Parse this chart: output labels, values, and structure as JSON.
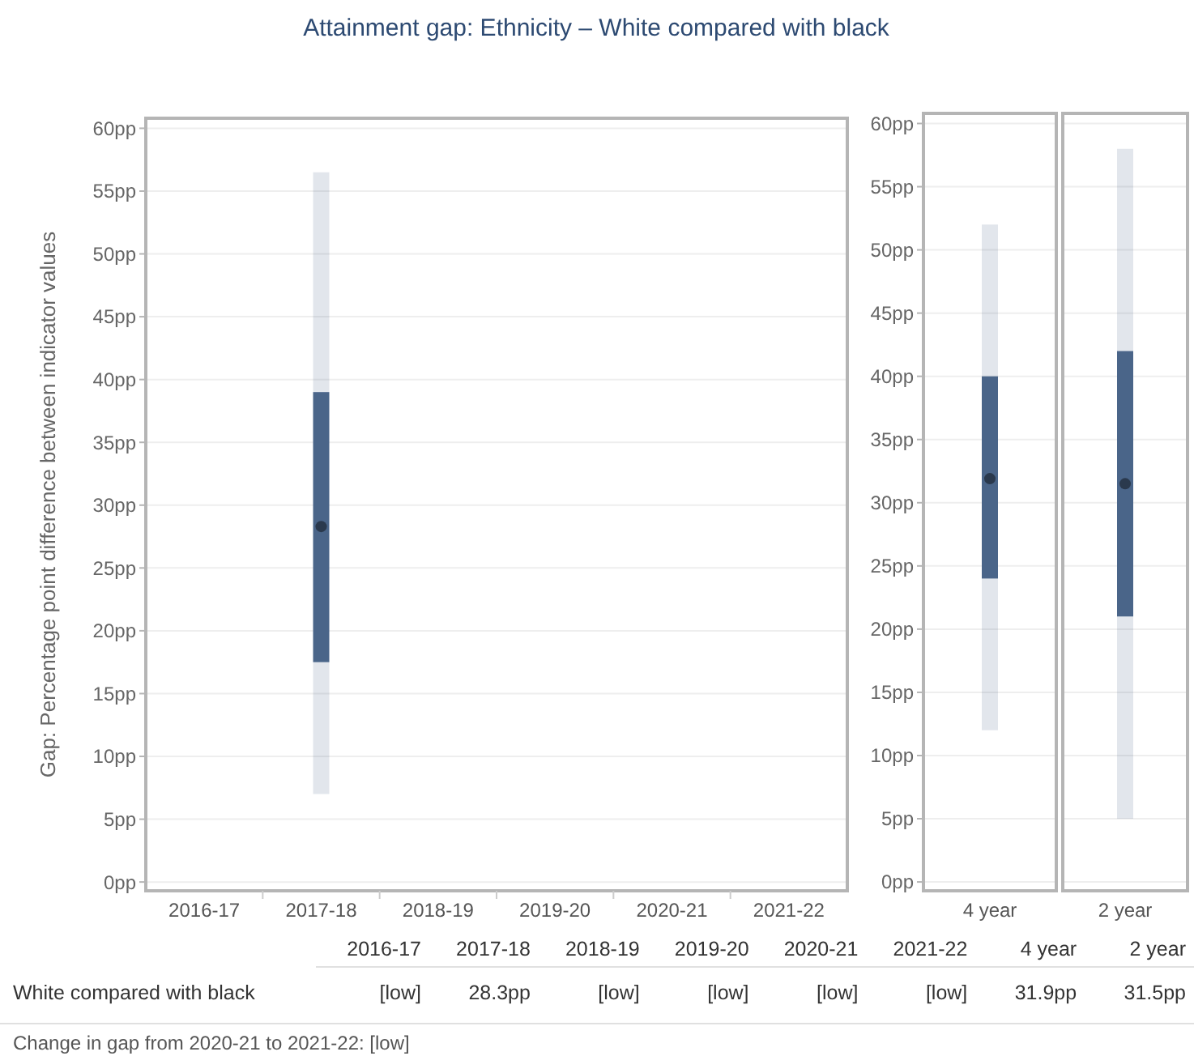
{
  "chart_data": [
    {
      "type": "box",
      "title": "Attainment gap: Ethnicity – White compared with black",
      "ylabel": "Gap: Percentage point difference between indicator values",
      "categories": [
        "2016-17",
        "2017-18",
        "2018-19",
        "2019-20",
        "2020-21",
        "2021-22"
      ],
      "ylim": [
        -0.7,
        60.8
      ],
      "yticks": [
        {
          "value": 0,
          "label": "0pp"
        },
        {
          "value": 5,
          "label": "5pp"
        },
        {
          "value": 10,
          "label": "10pp"
        },
        {
          "value": 15,
          "label": "15pp"
        },
        {
          "value": 20,
          "label": "20pp"
        },
        {
          "value": 25,
          "label": "25pp"
        },
        {
          "value": 30,
          "label": "30pp"
        },
        {
          "value": 35,
          "label": "35pp"
        },
        {
          "value": 40,
          "label": "40pp"
        },
        {
          "value": 45,
          "label": "45pp"
        },
        {
          "value": 50,
          "label": "50pp"
        },
        {
          "value": 55,
          "label": "55pp"
        },
        {
          "value": 60,
          "label": "60pp"
        }
      ],
      "grid": "y",
      "series": [
        {
          "name": "White compared with black",
          "color": "#4a6589",
          "boxes": [
            null,
            {
              "low": 7,
              "q1": 17.5,
              "median": 28.3,
              "q3": 39,
              "high": 56.5
            },
            null,
            null,
            null,
            null
          ],
          "value_labels": [
            "[low]",
            "28.3pp",
            "[low]",
            "[low]",
            "[low]",
            "[low]"
          ]
        }
      ],
      "annotations": [
        "Change in gap from 2020-21 to 2021-22: [low]"
      ]
    },
    {
      "type": "box",
      "categories": [
        "4 year"
      ],
      "ylim": [
        -0.7,
        60.8
      ],
      "yticks": [
        {
          "value": 0,
          "label": "0pp"
        },
        {
          "value": 5,
          "label": "5pp"
        },
        {
          "value": 10,
          "label": "10pp"
        },
        {
          "value": 15,
          "label": "15pp"
        },
        {
          "value": 20,
          "label": "20pp"
        },
        {
          "value": 25,
          "label": "25pp"
        },
        {
          "value": 30,
          "label": "30pp"
        },
        {
          "value": 35,
          "label": "35pp"
        },
        {
          "value": 40,
          "label": "40pp"
        },
        {
          "value": 45,
          "label": "45pp"
        },
        {
          "value": 50,
          "label": "50pp"
        },
        {
          "value": 55,
          "label": "55pp"
        },
        {
          "value": 60,
          "label": "60pp"
        }
      ],
      "grid": "y",
      "series": [
        {
          "color": "#4a6589",
          "boxes": [
            {
              "low": 12,
              "q1": 24,
              "median": 31.9,
              "q3": 40,
              "high": 52
            }
          ],
          "value_labels": [
            "31.9pp"
          ]
        }
      ]
    },
    {
      "type": "box",
      "categories": [
        "2 year"
      ],
      "ylim": [
        -0.7,
        60.8
      ],
      "yticks": [
        {
          "value": 0,
          "label": null
        },
        {
          "value": 5,
          "label": null
        },
        {
          "value": 10,
          "label": null
        },
        {
          "value": 15,
          "label": null
        },
        {
          "value": 20,
          "label": null
        },
        {
          "value": 25,
          "label": null
        },
        {
          "value": 30,
          "label": null
        },
        {
          "value": 35,
          "label": null
        },
        {
          "value": 40,
          "label": null
        },
        {
          "value": 45,
          "label": null
        },
        {
          "value": 50,
          "label": null
        },
        {
          "value": 55,
          "label": null
        },
        {
          "value": 60,
          "label": null
        }
      ],
      "grid": "y",
      "tick_labels": "x",
      "series": [
        {
          "color": "#4a6589",
          "boxes": [
            {
              "low": 5,
              "q1": 21,
              "median": 31.5,
              "q3": 42,
              "high": 58
            }
          ],
          "value_labels": [
            "31.5pp"
          ]
        }
      ]
    }
  ]
}
